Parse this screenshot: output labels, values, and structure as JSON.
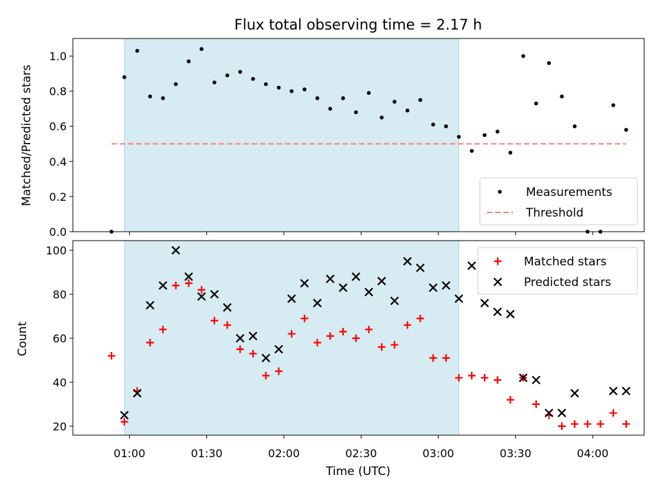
{
  "chart_data": {
    "title": "Flux total observing time = 2.17 h",
    "xlabel": "Time (UTC)",
    "x_ticks": [
      "01:00",
      "01:30",
      "02:00",
      "02:30",
      "03:00",
      "03:30",
      "04:00"
    ],
    "x_range": [
      "00:38",
      "04:20"
    ],
    "shaded_interval": [
      "00:58",
      "03:08"
    ],
    "shade_color": "#add8e6",
    "panels": [
      {
        "type": "scatter",
        "ylabel": "Matched/Predicted stars",
        "ylim": [
          0,
          1.1
        ],
        "y_ticks": [
          "0.0",
          "0.2",
          "0.4",
          "0.6",
          "0.8",
          "1.0"
        ],
        "legend_position": "lower-right",
        "threshold": {
          "name": "Threshold",
          "value": 0.5,
          "x_start": "00:53",
          "x_end": "04:13",
          "color": "#ff7f7f",
          "style": "dashed"
        },
        "series": [
          {
            "name": "Measurements",
            "marker": "dot",
            "color": "#000000",
            "x": [
              "00:53",
              "00:58",
              "01:03",
              "01:08",
              "01:13",
              "01:18",
              "01:23",
              "01:28",
              "01:33",
              "01:38",
              "01:43",
              "01:48",
              "01:53",
              "01:58",
              "02:03",
              "02:08",
              "02:13",
              "02:18",
              "02:23",
              "02:28",
              "02:33",
              "02:38",
              "02:43",
              "02:48",
              "02:53",
              "02:58",
              "03:03",
              "03:08",
              "03:13",
              "03:18",
              "03:23",
              "03:28",
              "03:33",
              "03:38",
              "03:43",
              "03:48",
              "03:53",
              "03:58",
              "04:03",
              "04:08",
              "04:13"
            ],
            "y": [
              0.0,
              0.88,
              1.03,
              0.77,
              0.76,
              0.84,
              0.97,
              1.04,
              0.85,
              0.89,
              0.91,
              0.87,
              0.84,
              0.82,
              0.8,
              0.81,
              0.76,
              0.7,
              0.76,
              0.68,
              0.79,
              0.65,
              0.74,
              0.69,
              0.75,
              0.61,
              0.6,
              0.54,
              0.46,
              0.55,
              0.57,
              0.45,
              1.0,
              0.73,
              0.96,
              0.77,
              0.6,
              0.0,
              0.0,
              0.72,
              0.58
            ]
          }
        ]
      },
      {
        "type": "scatter",
        "ylabel": "Count",
        "ylim": [
          15.9,
          104.4
        ],
        "y_ticks": [
          "20",
          "40",
          "60",
          "80",
          "100"
        ],
        "legend_position": "upper-right",
        "series": [
          {
            "name": "Matched stars",
            "marker": "plus",
            "color": "#ff0000",
            "x": [
              "00:53",
              "00:58",
              "01:03",
              "01:08",
              "01:13",
              "01:18",
              "01:23",
              "01:28",
              "01:33",
              "01:38",
              "01:43",
              "01:48",
              "01:53",
              "01:58",
              "02:03",
              "02:08",
              "02:13",
              "02:18",
              "02:23",
              "02:28",
              "02:33",
              "02:38",
              "02:43",
              "02:48",
              "02:53",
              "02:58",
              "03:03",
              "03:08",
              "03:13",
              "03:18",
              "03:23",
              "03:28",
              "03:33",
              "03:38",
              "03:43",
              "03:48",
              "03:53",
              "03:58",
              "04:03",
              "04:08",
              "04:13"
            ],
            "y": [
              52,
              22,
              36,
              58,
              64,
              84,
              85,
              82,
              68,
              66,
              55,
              53,
              43,
              45,
              62,
              69,
              58,
              61,
              63,
              60,
              64,
              56,
              57,
              66,
              69,
              51,
              51,
              42,
              43,
              42,
              41,
              32,
              42,
              30,
              25,
              20,
              21,
              21,
              21,
              26,
              21
            ]
          },
          {
            "name": "Predicted stars",
            "marker": "x",
            "color": "#000000",
            "x": [
              "00:58",
              "01:03",
              "01:08",
              "01:13",
              "01:18",
              "01:23",
              "01:28",
              "01:33",
              "01:38",
              "01:43",
              "01:48",
              "01:53",
              "01:58",
              "02:03",
              "02:08",
              "02:13",
              "02:18",
              "02:23",
              "02:28",
              "02:33",
              "02:38",
              "02:43",
              "02:48",
              "02:53",
              "02:58",
              "03:03",
              "03:08",
              "03:13",
              "03:18",
              "03:23",
              "03:28",
              "03:33",
              "03:38",
              "03:43",
              "03:48",
              "03:53",
              "04:08",
              "04:13"
            ],
            "y": [
              25,
              35,
              75,
              84,
              100,
              88,
              79,
              80,
              74,
              60,
              61,
              51,
              55,
              78,
              85,
              76,
              87,
              83,
              88,
              81,
              86,
              77,
              95,
              92,
              83,
              84,
              78,
              93,
              76,
              72,
              71,
              42,
              41,
              26,
              26,
              35,
              36,
              36
            ]
          }
        ]
      }
    ]
  }
}
